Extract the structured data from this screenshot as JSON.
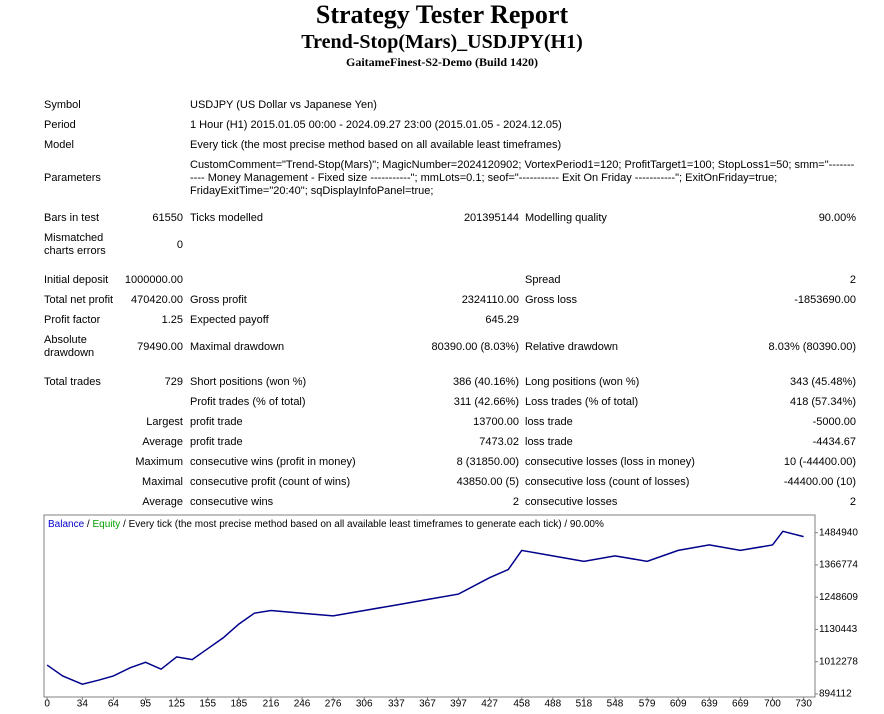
{
  "header": {
    "title": "Strategy Tester Report",
    "subtitle": "Trend-Stop(Mars)_USDJPY(H1)",
    "server": "GaitameFinest-S2-Demo (Build 1420)"
  },
  "info": [
    [
      "Symbol",
      "USDJPY (US Dollar vs Japanese Yen)"
    ],
    [
      "Period",
      "1 Hour (H1) 2015.01.05 00:00 - 2024.09.27 23:00 (2015.01.05 - 2024.12.05)"
    ],
    [
      "Model",
      "Every tick (the most precise method based on all available least timeframes)"
    ],
    [
      "Parameters",
      "CustomComment=\"Trend-Stop(Mars)\"; MagicNumber=2024120902; VortexPeriod1=120; ProfitTarget1=100; StopLoss1=50; smm=\"----------- Money Management - Fixed size -----------\"; mmLots=0.1; seof=\"----------- Exit On Friday -----------\"; ExitOnFriday=true; FridayExitTime=\"20:40\"; sqDisplayInfoPanel=true;"
    ]
  ],
  "table": {
    "rows": [
      [
        "Bars in test",
        "61550",
        "Ticks modelled",
        "201395144",
        "Modelling quality",
        "90.00%"
      ],
      [
        "Mismatched charts errors",
        "0",
        null,
        null,
        null,
        null
      ],
      [
        "Initial deposit",
        "1000000.00",
        null,
        null,
        "Spread",
        "2"
      ],
      [
        "Total net profit",
        "470420.00",
        "Gross profit",
        "2324110.00",
        "Gross loss",
        "-1853690.00"
      ],
      [
        "Profit factor",
        "1.25",
        "Expected payoff",
        "645.29",
        null,
        null
      ],
      [
        "Absolute drawdown",
        "79490.00",
        "Maximal drawdown",
        "80390.00 (8.03%)",
        "Relative drawdown",
        "8.03% (80390.00)"
      ],
      [
        "Total trades",
        "729",
        "Short positions (won %)",
        "386 (40.16%)",
        "Long positions (won %)",
        "343 (45.48%)"
      ],
      [
        null,
        null,
        "Profit trades (% of total)",
        "311 (42.66%)",
        "Loss trades (% of total)",
        "418 (57.34%)"
      ],
      [
        null,
        "Largest",
        "profit trade",
        "13700.00",
        "loss trade",
        "-5000.00"
      ],
      [
        null,
        "Average",
        "profit trade",
        "7473.02",
        "loss trade",
        "-4434.67"
      ],
      [
        null,
        "Maximum",
        "consecutive wins (profit in money)",
        "8 (31850.00)",
        "consecutive losses (loss in money)",
        "10 (-44400.00)"
      ],
      [
        null,
        "Maximal",
        "consecutive profit (count of wins)",
        "43850.00 (5)",
        "consecutive loss (count of losses)",
        "-44400.00 (10)"
      ],
      [
        null,
        "Average",
        "consecutive wins",
        "2",
        "consecutive losses",
        "2"
      ]
    ]
  },
  "chart_data": {
    "type": "line",
    "legend_parts": [
      {
        "text": "Balance",
        "color": "#0000cc"
      },
      {
        "text": " / ",
        "color": "#000000"
      },
      {
        "text": "Equity",
        "color": "#00a000"
      },
      {
        "text": " / Every tick (the most precise method based on all available least timeframes to generate each tick) / 90.00%",
        "color": "#000000"
      }
    ],
    "x": [
      0,
      15,
      34,
      50,
      64,
      80,
      95,
      110,
      125,
      140,
      155,
      170,
      185,
      200,
      216,
      246,
      276,
      306,
      337,
      367,
      397,
      427,
      445,
      458,
      488,
      518,
      548,
      579,
      609,
      639,
      669,
      700,
      710,
      730
    ],
    "series": [
      {
        "name": "Balance",
        "color": "#00008b",
        "values": [
          1000000,
          960000,
          930000,
          945000,
          960000,
          990000,
          1010000,
          985000,
          1030000,
          1020000,
          1060000,
          1100000,
          1150000,
          1190000,
          1200000,
          1190000,
          1180000,
          1200000,
          1220000,
          1240000,
          1260000,
          1320000,
          1350000,
          1420000,
          1400000,
          1380000,
          1400000,
          1380000,
          1420000,
          1440000,
          1420000,
          1440000,
          1490000,
          1470420
        ]
      }
    ],
    "xlim": [
      -3,
      741
    ],
    "ylim": [
      883000,
      1549700
    ],
    "xticks": [
      0,
      34,
      64,
      95,
      125,
      155,
      185,
      216,
      246,
      276,
      306,
      337,
      367,
      397,
      427,
      458,
      488,
      518,
      548,
      579,
      609,
      639,
      669,
      700,
      730
    ],
    "yticks": [
      894112,
      1012278,
      1130443,
      1248609,
      1366774,
      1484940
    ]
  }
}
